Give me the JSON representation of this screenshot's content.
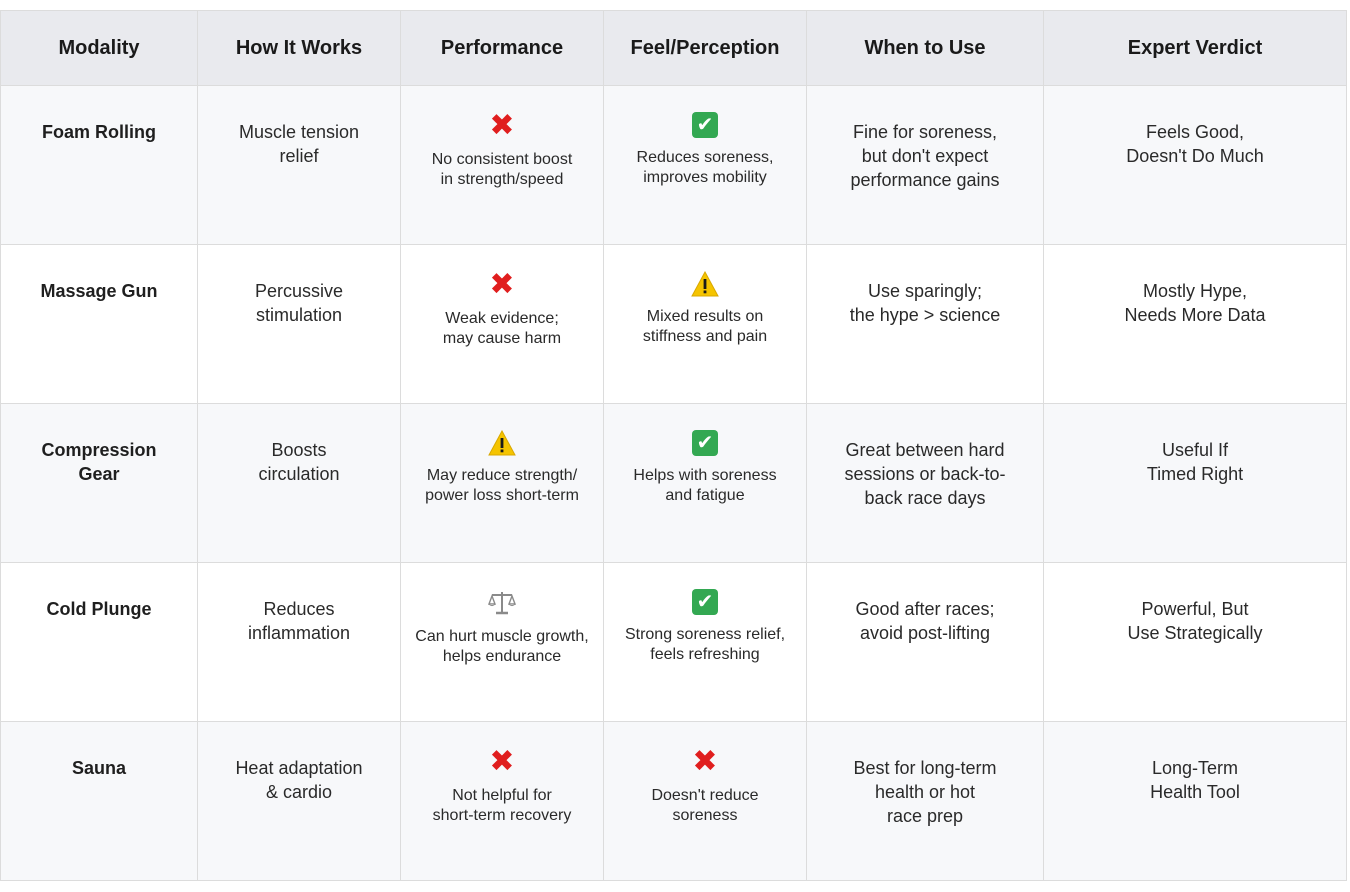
{
  "headers": [
    "Modality",
    "How It Works",
    "Performance",
    "Feel/Perception",
    "When to Use",
    "Expert Verdict"
  ],
  "rows": [
    {
      "modality": "Foam Rolling",
      "how": "Muscle tension\nrelief",
      "performance": {
        "icon": "cross-mark-icon",
        "text": "No consistent boost\nin strength/speed"
      },
      "feel": {
        "icon": "check-mark-icon",
        "text": "Reduces soreness,\nimproves mobility"
      },
      "when": "Fine for soreness,\nbut don't expect\nperformance gains",
      "verdict": "Feels Good,\nDoesn't Do Much"
    },
    {
      "modality": "Massage Gun",
      "how": "Percussive\nstimulation",
      "performance": {
        "icon": "cross-mark-icon",
        "text": "Weak evidence;\nmay cause harm"
      },
      "feel": {
        "icon": "warning-icon",
        "text": "Mixed results on\nstiffness and pain"
      },
      "when": "Use sparingly;\nthe hype > science",
      "verdict": "Mostly Hype,\nNeeds More Data"
    },
    {
      "modality": "Compression\nGear",
      "how": "Boosts\ncirculation",
      "performance": {
        "icon": "warning-icon",
        "text": "May reduce strength/\npower loss short-term"
      },
      "feel": {
        "icon": "check-mark-icon",
        "text": "Helps with soreness\nand fatigue"
      },
      "when": "Great between hard\nsessions or back-to-\nback race days",
      "verdict": "Useful If\nTimed Right"
    },
    {
      "modality": "Cold Plunge",
      "how": "Reduces\ninflammation",
      "performance": {
        "icon": "balance-scale-icon",
        "text": "Can hurt muscle growth,\nhelps endurance"
      },
      "feel": {
        "icon": "check-mark-icon",
        "text": "Strong soreness relief,\nfeels refreshing"
      },
      "when": "Good after races;\navoid post-lifting",
      "verdict": "Powerful, But\nUse Strategically"
    },
    {
      "modality": "Sauna",
      "how": "Heat adaptation\n& cardio",
      "performance": {
        "icon": "cross-mark-icon",
        "text": "Not helpful for\nshort-term recovery"
      },
      "feel": {
        "icon": "cross-mark-icon",
        "text": "Doesn't reduce\nsoreness"
      },
      "when": "Best for long-term\nhealth or hot\nrace prep",
      "verdict": "Long-Term\nHealth Tool"
    }
  ],
  "colors": {
    "header_bg": "#e9eaee",
    "border": "#dcdcdc",
    "cross": "#e01e1e",
    "check": "#33a852",
    "warning": "#f5c400"
  }
}
